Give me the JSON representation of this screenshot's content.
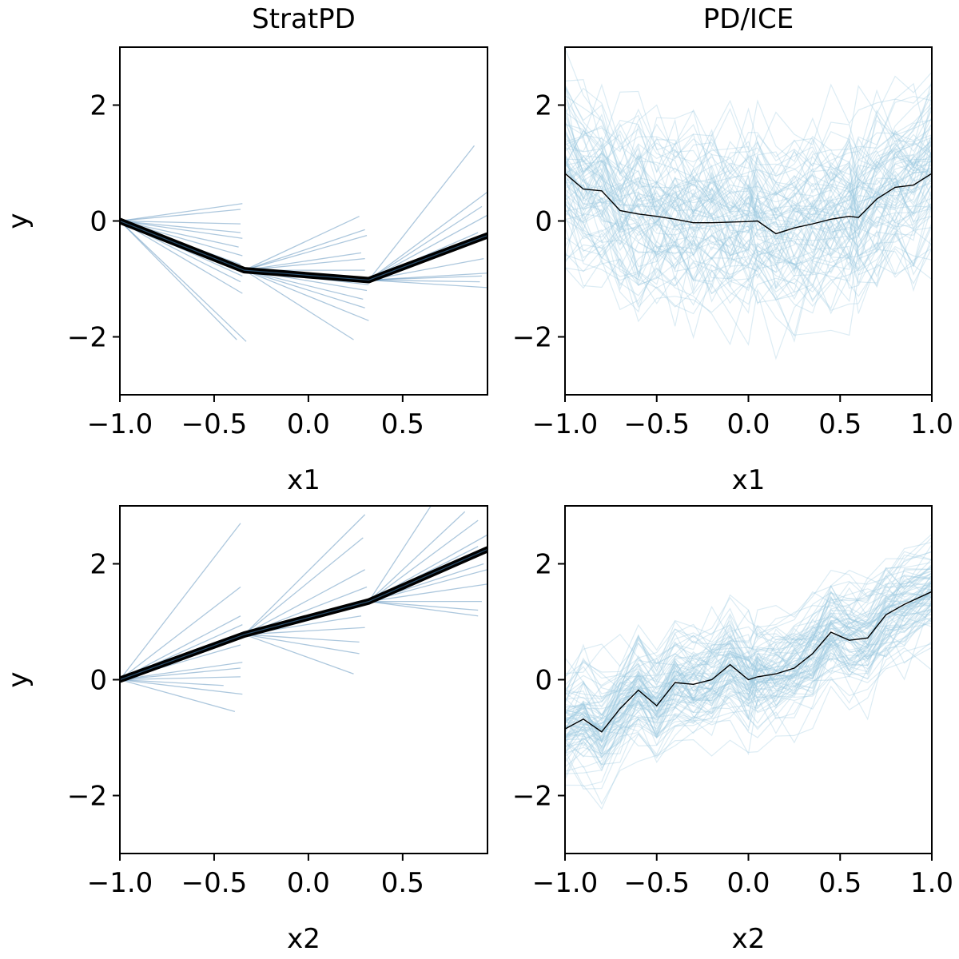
{
  "figure": {
    "colors": {
      "strat_segment": "#4682b4",
      "strat_curve": "#000000",
      "ice_line": "#9ac8df",
      "pd_line": "#000000"
    }
  },
  "chart_data": [
    {
      "id": "strat-x1",
      "type": "line",
      "title": "StratPD",
      "xlabel": "x1",
      "ylabel": "y",
      "xlim": [
        -1.0,
        0.95
      ],
      "ylim": [
        -3,
        3
      ],
      "xticks": [
        "−1.0",
        "−0.5",
        "0.0",
        "0.5"
      ],
      "yticks": [
        "−2",
        "0",
        "2"
      ],
      "xtick_values": [
        -1.0,
        -0.5,
        0.0,
        0.5
      ],
      "ytick_values": [
        -2,
        0,
        2
      ],
      "grid": false,
      "pd_curve": {
        "x": [
          -1.0,
          -0.34,
          0.32,
          0.95
        ],
        "y": [
          0.0,
          -0.85,
          -1.02,
          -0.25
        ]
      },
      "bin_edges": [
        -1.0,
        -0.34,
        0.32,
        0.95
      ],
      "segments": [
        [
          [
            -1.0,
            0.0
          ],
          [
            -0.35,
            0.3
          ]
        ],
        [
          [
            -1.0,
            0.0
          ],
          [
            -0.36,
            0.2
          ]
        ],
        [
          [
            -1.0,
            0.0
          ],
          [
            -0.36,
            -0.2
          ]
        ],
        [
          [
            -1.0,
            0.0
          ],
          [
            -0.35,
            -0.3
          ]
        ],
        [
          [
            -1.0,
            0.0
          ],
          [
            -0.37,
            -0.45
          ]
        ],
        [
          [
            -1.0,
            0.0
          ],
          [
            -0.35,
            -0.6
          ]
        ],
        [
          [
            -1.0,
            0.0
          ],
          [
            -0.36,
            -0.75
          ]
        ],
        [
          [
            -1.0,
            0.0
          ],
          [
            -0.35,
            -0.95
          ]
        ],
        [
          [
            -1.0,
            0.0
          ],
          [
            -0.36,
            -1.05
          ]
        ],
        [
          [
            -1.0,
            0.0
          ],
          [
            -0.35,
            -1.25
          ]
        ],
        [
          [
            -1.0,
            0.0
          ],
          [
            -0.38,
            -2.05
          ]
        ],
        [
          [
            -1.0,
            0.0
          ],
          [
            -0.33,
            -2.08
          ]
        ],
        [
          [
            -1.0,
            0.0
          ],
          [
            -0.36,
            -0.05
          ]
        ],
        [
          [
            -0.34,
            -0.85
          ],
          [
            0.27,
            0.08
          ]
        ],
        [
          [
            -0.34,
            -0.85
          ],
          [
            0.3,
            -0.15
          ]
        ],
        [
          [
            -0.34,
            -0.85
          ],
          [
            0.31,
            -0.25
          ]
        ],
        [
          [
            -0.34,
            -0.85
          ],
          [
            0.28,
            -0.55
          ]
        ],
        [
          [
            -0.34,
            -0.85
          ],
          [
            0.3,
            -0.65
          ]
        ],
        [
          [
            -0.34,
            -0.85
          ],
          [
            0.3,
            -0.85
          ]
        ],
        [
          [
            -0.34,
            -0.85
          ],
          [
            0.31,
            -1.2
          ]
        ],
        [
          [
            -0.34,
            -0.85
          ],
          [
            0.29,
            -1.35
          ]
        ],
        [
          [
            -0.34,
            -0.85
          ],
          [
            0.3,
            -1.5
          ]
        ],
        [
          [
            -0.34,
            -0.85
          ],
          [
            0.32,
            -1.72
          ]
        ],
        [
          [
            -0.34,
            -0.85
          ],
          [
            0.24,
            -2.05
          ]
        ],
        [
          [
            -0.34,
            -0.85
          ],
          [
            0.32,
            -1.1
          ]
        ],
        [
          [
            0.32,
            -1.02
          ],
          [
            0.88,
            1.3
          ]
        ],
        [
          [
            0.32,
            -1.02
          ],
          [
            0.95,
            0.5
          ]
        ],
        [
          [
            0.32,
            -1.02
          ],
          [
            0.92,
            0.25
          ]
        ],
        [
          [
            0.32,
            -1.02
          ],
          [
            0.95,
            0.1
          ]
        ],
        [
          [
            0.32,
            -1.02
          ],
          [
            0.9,
            -0.35
          ]
        ],
        [
          [
            0.32,
            -1.02
          ],
          [
            0.93,
            -0.65
          ]
        ],
        [
          [
            0.32,
            -1.02
          ],
          [
            0.92,
            -0.95
          ]
        ],
        [
          [
            0.32,
            -1.02
          ],
          [
            0.95,
            -0.9
          ]
        ],
        [
          [
            0.32,
            -1.02
          ],
          [
            0.91,
            -1.05
          ]
        ],
        [
          [
            0.32,
            -1.02
          ],
          [
            0.95,
            -1.15
          ]
        ],
        [
          [
            0.32,
            -1.02
          ],
          [
            0.9,
            -0.2
          ]
        ]
      ]
    },
    {
      "id": "ice-x1",
      "type": "line",
      "title": "PD/ICE",
      "xlabel": "x1",
      "ylabel": "",
      "xlim": [
        -1.0,
        1.0
      ],
      "ylim": [
        -3,
        3
      ],
      "xticks": [
        "−1.0",
        "−0.5",
        "0.0",
        "0.5",
        "1.0"
      ],
      "yticks": [
        "−2",
        "0",
        "2"
      ],
      "xtick_values": [
        -1.0,
        -0.5,
        0.0,
        0.5,
        1.0
      ],
      "ytick_values": [
        -2,
        0,
        2
      ],
      "grid": false,
      "x": [
        -1.0,
        -0.9,
        -0.8,
        -0.7,
        -0.6,
        -0.5,
        -0.4,
        -0.3,
        -0.2,
        -0.1,
        0.0,
        0.05,
        0.15,
        0.25,
        0.35,
        0.45,
        0.55,
        0.6,
        0.7,
        0.8,
        0.9,
        1.0
      ],
      "pd_y": [
        0.82,
        0.55,
        0.52,
        0.18,
        0.12,
        0.08,
        0.03,
        -0.03,
        -0.03,
        -0.02,
        -0.01,
        0.0,
        -0.22,
        -0.12,
        -0.05,
        0.03,
        0.08,
        0.06,
        0.38,
        0.58,
        0.62,
        0.82
      ],
      "ice_count": 90,
      "ice_spread": 1.3
    },
    {
      "id": "strat-x2",
      "type": "line",
      "title": "",
      "xlabel": "x2",
      "ylabel": "y",
      "xlim": [
        -1.0,
        0.95
      ],
      "ylim": [
        -3,
        3
      ],
      "xticks": [
        "−1.0",
        "−0.5",
        "0.0",
        "0.5"
      ],
      "yticks": [
        "−2",
        "0",
        "2"
      ],
      "xtick_values": [
        -1.0,
        -0.5,
        0.0,
        0.5
      ],
      "ytick_values": [
        -2,
        0,
        2
      ],
      "grid": false,
      "pd_curve": {
        "x": [
          -1.0,
          -0.34,
          0.32,
          0.95
        ],
        "y": [
          0.0,
          0.78,
          1.35,
          2.25
        ]
      },
      "bin_edges": [
        -1.0,
        -0.34,
        0.32,
        0.95
      ],
      "segments": [
        [
          [
            -1.0,
            0.0
          ],
          [
            -0.36,
            2.7
          ]
        ],
        [
          [
            -1.0,
            0.0
          ],
          [
            -0.36,
            1.6
          ]
        ],
        [
          [
            -1.0,
            0.0
          ],
          [
            -0.36,
            1.1
          ]
        ],
        [
          [
            -1.0,
            0.0
          ],
          [
            -0.35,
            0.95
          ]
        ],
        [
          [
            -1.0,
            0.0
          ],
          [
            -0.35,
            0.8
          ]
        ],
        [
          [
            -1.0,
            0.0
          ],
          [
            -0.36,
            0.6
          ]
        ],
        [
          [
            -1.0,
            0.0
          ],
          [
            -0.35,
            0.3
          ]
        ],
        [
          [
            -1.0,
            0.0
          ],
          [
            -0.36,
            0.05
          ]
        ],
        [
          [
            -1.0,
            0.0
          ],
          [
            -0.45,
            -0.1
          ]
        ],
        [
          [
            -1.0,
            0.0
          ],
          [
            -0.35,
            -0.25
          ]
        ],
        [
          [
            -1.0,
            0.0
          ],
          [
            -0.39,
            -0.55
          ]
        ],
        [
          [
            -1.0,
            0.0
          ],
          [
            -0.36,
            0.2
          ]
        ],
        [
          [
            -0.34,
            0.78
          ],
          [
            0.3,
            2.85
          ]
        ],
        [
          [
            -0.34,
            0.78
          ],
          [
            0.29,
            2.45
          ]
        ],
        [
          [
            -0.34,
            0.78
          ],
          [
            0.3,
            1.9
          ]
        ],
        [
          [
            -0.34,
            0.78
          ],
          [
            0.31,
            1.6
          ]
        ],
        [
          [
            -0.34,
            0.78
          ],
          [
            0.3,
            1.35
          ]
        ],
        [
          [
            -0.34,
            0.78
          ],
          [
            0.28,
            1.1
          ]
        ],
        [
          [
            -0.34,
            0.78
          ],
          [
            0.27,
            0.65
          ]
        ],
        [
          [
            -0.34,
            0.78
          ],
          [
            0.24,
            0.1
          ]
        ],
        [
          [
            -0.34,
            0.78
          ],
          [
            0.3,
            0.9
          ]
        ],
        [
          [
            -0.34,
            0.78
          ],
          [
            0.27,
            0.45
          ]
        ],
        [
          [
            0.32,
            1.35
          ],
          [
            0.65,
            3.0
          ]
        ],
        [
          [
            0.32,
            1.35
          ],
          [
            0.83,
            2.9
          ]
        ],
        [
          [
            0.32,
            1.35
          ],
          [
            0.9,
            2.75
          ]
        ],
        [
          [
            0.32,
            1.35
          ],
          [
            0.95,
            2.5
          ]
        ],
        [
          [
            0.32,
            1.35
          ],
          [
            0.9,
            2.3
          ]
        ],
        [
          [
            0.32,
            1.35
          ],
          [
            0.93,
            2.0
          ]
        ],
        [
          [
            0.32,
            1.35
          ],
          [
            0.95,
            1.9
          ]
        ],
        [
          [
            0.32,
            1.35
          ],
          [
            0.95,
            1.65
          ]
        ],
        [
          [
            0.32,
            1.35
          ],
          [
            0.92,
            1.35
          ]
        ],
        [
          [
            0.32,
            1.35
          ],
          [
            0.9,
            1.2
          ]
        ],
        [
          [
            0.32,
            1.35
          ],
          [
            0.9,
            1.1
          ]
        ]
      ]
    },
    {
      "id": "ice-x2",
      "type": "line",
      "title": "",
      "xlabel": "x2",
      "ylabel": "",
      "xlim": [
        -1.0,
        1.0
      ],
      "ylim": [
        -3,
        3
      ],
      "xticks": [
        "−1.0",
        "−0.5",
        "0.0",
        "0.5",
        "1.0"
      ],
      "yticks": [
        "−2",
        "0",
        "2"
      ],
      "xtick_values": [
        -1.0,
        -0.5,
        0.0,
        0.5,
        1.0
      ],
      "ytick_values": [
        -2,
        0,
        2
      ],
      "grid": false,
      "x": [
        -1.0,
        -0.9,
        -0.8,
        -0.7,
        -0.6,
        -0.5,
        -0.4,
        -0.3,
        -0.2,
        -0.1,
        0.0,
        0.05,
        0.15,
        0.25,
        0.35,
        0.45,
        0.55,
        0.65,
        0.75,
        0.85,
        1.0
      ],
      "pd_y": [
        -0.85,
        -0.68,
        -0.9,
        -0.5,
        -0.18,
        -0.45,
        -0.05,
        -0.08,
        0.0,
        0.26,
        0.0,
        0.05,
        0.1,
        0.2,
        0.45,
        0.82,
        0.68,
        0.72,
        1.12,
        1.3,
        1.52
      ],
      "ice_count": 90,
      "ice_spread": 0.75
    }
  ]
}
